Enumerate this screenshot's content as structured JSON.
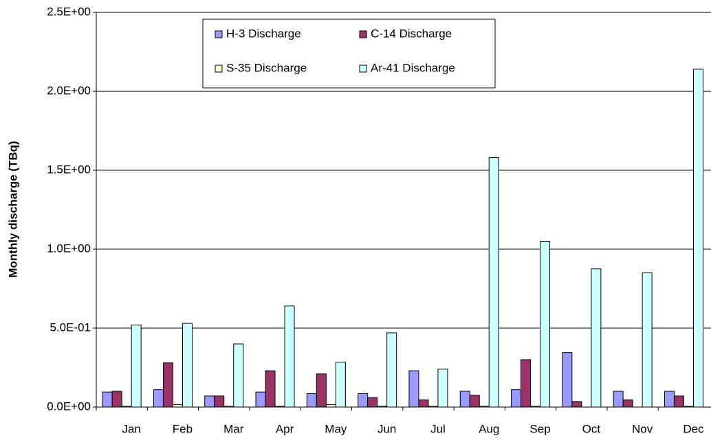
{
  "chart_data": {
    "type": "bar",
    "y_label": "Monthly discharge (TBq)",
    "categories": [
      "Jan",
      "Feb",
      "Mar",
      "Apr",
      "May",
      "Jun",
      "Jul",
      "Aug",
      "Sep",
      "Oct",
      "Nov",
      "Dec"
    ],
    "series": [
      {
        "name": "H-3 Discharge",
        "color": "#9999ff",
        "values": [
          0.095,
          0.11,
          0.07,
          0.095,
          0.085,
          0.085,
          0.23,
          0.1,
          0.11,
          0.345,
          0.1,
          0.1
        ]
      },
      {
        "name": "C-14 Discharge",
        "color": "#993366",
        "values": [
          0.1,
          0.28,
          0.07,
          0.23,
          0.21,
          0.06,
          0.045,
          0.075,
          0.3,
          0.035,
          0.045,
          0.07
        ]
      },
      {
        "name": "S-35 Discharge",
        "color": "#ffffcc",
        "values": [
          0.005,
          0.015,
          0.005,
          0.005,
          0.015,
          0.005,
          0.005,
          0.005,
          0.005,
          0,
          0,
          0.005
        ]
      },
      {
        "name": "Ar-41 Discharge",
        "color": "#ccffff",
        "values": [
          0.52,
          0.53,
          0.4,
          0.64,
          0.285,
          0.47,
          0.24,
          1.58,
          1.05,
          0.875,
          0.85,
          2.14
        ]
      }
    ],
    "ylim": [
      0,
      2.5
    ],
    "yticks": [
      {
        "value": 0,
        "label": "0.0E+00"
      },
      {
        "value": 0.5,
        "label": "5.0E-01"
      },
      {
        "value": 1,
        "label": "1.0E+00"
      },
      {
        "value": 1.5,
        "label": "1.5E+00"
      },
      {
        "value": 2,
        "label": "2.0E+00"
      },
      {
        "value": 2.5,
        "label": "2.5E+00"
      }
    ],
    "grid": true
  }
}
